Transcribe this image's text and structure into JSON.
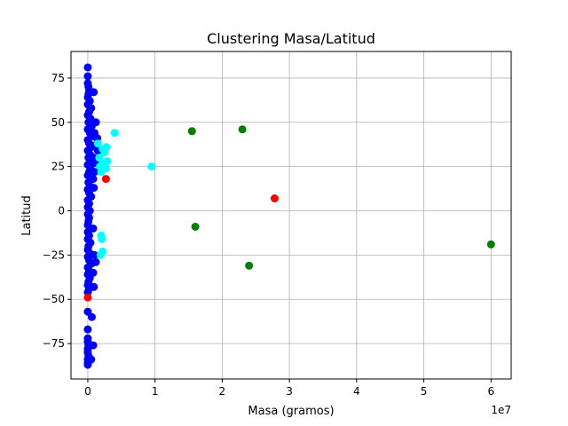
{
  "chart_data": {
    "type": "scatter",
    "title": "Clustering Masa/Latitud",
    "xlabel": "Masa (gramos)",
    "ylabel": "Latitud",
    "x_offset_text": "1e7",
    "xlim": [
      -0.25,
      6.3
    ],
    "ylim": [
      -95,
      90
    ],
    "x_unit_scale": 10000000,
    "x_ticks": [
      0,
      1,
      2,
      3,
      4,
      5,
      6
    ],
    "x_tick_labels": [
      "0",
      "1",
      "2",
      "3",
      "4",
      "5",
      "6"
    ],
    "y_ticks": [
      -75,
      -50,
      -25,
      0,
      25,
      50,
      75
    ],
    "y_tick_labels": [
      "−75",
      "−50",
      "−25",
      "0",
      "25",
      "50",
      "75"
    ],
    "grid": true,
    "series": [
      {
        "color": "#0000ff",
        "points": [
          [
            0.0,
            81
          ],
          [
            0.0,
            76
          ],
          [
            0.0,
            72
          ],
          [
            0.01,
            70
          ],
          [
            0.02,
            68
          ],
          [
            0.01,
            66
          ],
          [
            0.0,
            64
          ],
          [
            0.03,
            62
          ],
          [
            0.0,
            60
          ],
          [
            0.05,
            58
          ],
          [
            0.02,
            56
          ],
          [
            0.0,
            54
          ],
          [
            0.04,
            52
          ],
          [
            0.01,
            50
          ],
          [
            0.06,
            48
          ],
          [
            0.0,
            46
          ],
          [
            0.03,
            44
          ],
          [
            0.08,
            42
          ],
          [
            0.0,
            40
          ],
          [
            0.02,
            38
          ],
          [
            0.05,
            36
          ],
          [
            0.0,
            34
          ],
          [
            0.03,
            32
          ],
          [
            0.01,
            30
          ],
          [
            0.07,
            28
          ],
          [
            0.0,
            26
          ],
          [
            0.04,
            24
          ],
          [
            0.02,
            22
          ],
          [
            0.0,
            20
          ],
          [
            0.05,
            18
          ],
          [
            0.01,
            16
          ],
          [
            0.03,
            14
          ],
          [
            0.0,
            12
          ],
          [
            0.02,
            10
          ],
          [
            0.05,
            8
          ],
          [
            0.0,
            6
          ],
          [
            0.02,
            4
          ],
          [
            0.0,
            2
          ],
          [
            0.03,
            0
          ],
          [
            0.0,
            -2
          ],
          [
            0.02,
            -4
          ],
          [
            0.01,
            -6
          ],
          [
            0.0,
            -8
          ],
          [
            0.03,
            -10
          ],
          [
            0.0,
            -12
          ],
          [
            0.02,
            -14
          ],
          [
            0.0,
            -16
          ],
          [
            0.04,
            -18
          ],
          [
            0.01,
            -20
          ],
          [
            0.0,
            -22
          ],
          [
            0.03,
            -24
          ],
          [
            0.0,
            -26
          ],
          [
            0.02,
            -28
          ],
          [
            0.05,
            -30
          ],
          [
            0.0,
            -32
          ],
          [
            0.02,
            -34
          ],
          [
            0.0,
            -36
          ],
          [
            0.03,
            -38
          ],
          [
            0.01,
            -40
          ],
          [
            0.0,
            -42
          ],
          [
            0.02,
            -44
          ],
          [
            0.0,
            -46
          ],
          [
            0.0,
            -57
          ],
          [
            0.0,
            -67
          ],
          [
            0.0,
            -72
          ],
          [
            0.0,
            -74
          ],
          [
            0.01,
            -76
          ],
          [
            0.0,
            -78
          ],
          [
            0.0,
            -80
          ],
          [
            0.01,
            -82
          ],
          [
            0.0,
            -84
          ],
          [
            0.0,
            -86
          ],
          [
            0.0,
            -87
          ],
          [
            0.09,
            67
          ],
          [
            0.12,
            50
          ],
          [
            0.1,
            44
          ],
          [
            0.14,
            41
          ],
          [
            0.11,
            37
          ],
          [
            0.15,
            34
          ],
          [
            0.09,
            30
          ],
          [
            0.12,
            27
          ],
          [
            0.1,
            22
          ],
          [
            0.08,
            18
          ],
          [
            0.09,
            13
          ],
          [
            0.08,
            -10
          ],
          [
            0.1,
            -25
          ],
          [
            0.12,
            -29
          ],
          [
            0.08,
            -35
          ],
          [
            0.09,
            -43
          ],
          [
            0.06,
            -60
          ],
          [
            0.08,
            -76
          ],
          [
            0.05,
            -84
          ]
        ]
      },
      {
        "color": "#00ffff",
        "points": [
          [
            0.4,
            44
          ],
          [
            0.28,
            36
          ],
          [
            0.22,
            35
          ],
          [
            0.15,
            38
          ],
          [
            0.25,
            33
          ],
          [
            0.17,
            30
          ],
          [
            0.29,
            28
          ],
          [
            0.22,
            27
          ],
          [
            0.27,
            24
          ],
          [
            0.2,
            22
          ],
          [
            0.18,
            25
          ],
          [
            0.95,
            25
          ],
          [
            0.2,
            -14
          ],
          [
            0.21,
            -16
          ],
          [
            0.22,
            -23
          ],
          [
            0.19,
            -25
          ]
        ]
      },
      {
        "color": "#ff0000",
        "points": [
          [
            0.27,
            18
          ],
          [
            2.78,
            7
          ],
          [
            0.0,
            -49
          ]
        ]
      },
      {
        "color": "#008000",
        "points": [
          [
            1.55,
            45
          ],
          [
            2.3,
            46
          ],
          [
            1.6,
            -9
          ],
          [
            2.4,
            -31
          ],
          [
            6.0,
            -19
          ]
        ]
      }
    ]
  }
}
